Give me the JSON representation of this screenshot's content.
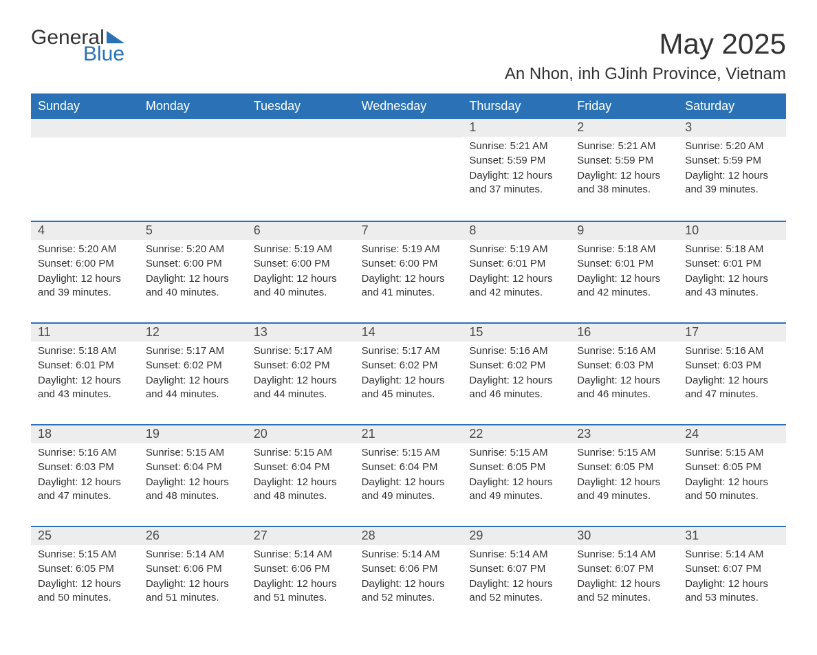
{
  "logo": {
    "text_top": "General",
    "text_bottom": "Blue"
  },
  "title": "May 2025",
  "location": "An Nhon, inh GJinh Province, Vietnam",
  "colors": {
    "header_bg": "#2a72b5",
    "header_text": "#ffffff",
    "row_border": "#2a72b5",
    "daynum_bg": "#ededed",
    "text": "#333333",
    "logo_accent": "#2a72b5"
  },
  "day_names": [
    "Sunday",
    "Monday",
    "Tuesday",
    "Wednesday",
    "Thursday",
    "Friday",
    "Saturday"
  ],
  "label_sunrise": "Sunrise:",
  "label_sunset": "Sunset:",
  "label_daylight": "Daylight:",
  "weeks": [
    [
      null,
      null,
      null,
      null,
      {
        "day": "1",
        "sunrise": "5:21 AM",
        "sunset": "5:59 PM",
        "daylight": "12 hours and 37 minutes."
      },
      {
        "day": "2",
        "sunrise": "5:21 AM",
        "sunset": "5:59 PM",
        "daylight": "12 hours and 38 minutes."
      },
      {
        "day": "3",
        "sunrise": "5:20 AM",
        "sunset": "5:59 PM",
        "daylight": "12 hours and 39 minutes."
      }
    ],
    [
      {
        "day": "4",
        "sunrise": "5:20 AM",
        "sunset": "6:00 PM",
        "daylight": "12 hours and 39 minutes."
      },
      {
        "day": "5",
        "sunrise": "5:20 AM",
        "sunset": "6:00 PM",
        "daylight": "12 hours and 40 minutes."
      },
      {
        "day": "6",
        "sunrise": "5:19 AM",
        "sunset": "6:00 PM",
        "daylight": "12 hours and 40 minutes."
      },
      {
        "day": "7",
        "sunrise": "5:19 AM",
        "sunset": "6:00 PM",
        "daylight": "12 hours and 41 minutes."
      },
      {
        "day": "8",
        "sunrise": "5:19 AM",
        "sunset": "6:01 PM",
        "daylight": "12 hours and 42 minutes."
      },
      {
        "day": "9",
        "sunrise": "5:18 AM",
        "sunset": "6:01 PM",
        "daylight": "12 hours and 42 minutes."
      },
      {
        "day": "10",
        "sunrise": "5:18 AM",
        "sunset": "6:01 PM",
        "daylight": "12 hours and 43 minutes."
      }
    ],
    [
      {
        "day": "11",
        "sunrise": "5:18 AM",
        "sunset": "6:01 PM",
        "daylight": "12 hours and 43 minutes."
      },
      {
        "day": "12",
        "sunrise": "5:17 AM",
        "sunset": "6:02 PM",
        "daylight": "12 hours and 44 minutes."
      },
      {
        "day": "13",
        "sunrise": "5:17 AM",
        "sunset": "6:02 PM",
        "daylight": "12 hours and 44 minutes."
      },
      {
        "day": "14",
        "sunrise": "5:17 AM",
        "sunset": "6:02 PM",
        "daylight": "12 hours and 45 minutes."
      },
      {
        "day": "15",
        "sunrise": "5:16 AM",
        "sunset": "6:02 PM",
        "daylight": "12 hours and 46 minutes."
      },
      {
        "day": "16",
        "sunrise": "5:16 AM",
        "sunset": "6:03 PM",
        "daylight": "12 hours and 46 minutes."
      },
      {
        "day": "17",
        "sunrise": "5:16 AM",
        "sunset": "6:03 PM",
        "daylight": "12 hours and 47 minutes."
      }
    ],
    [
      {
        "day": "18",
        "sunrise": "5:16 AM",
        "sunset": "6:03 PM",
        "daylight": "12 hours and 47 minutes."
      },
      {
        "day": "19",
        "sunrise": "5:15 AM",
        "sunset": "6:04 PM",
        "daylight": "12 hours and 48 minutes."
      },
      {
        "day": "20",
        "sunrise": "5:15 AM",
        "sunset": "6:04 PM",
        "daylight": "12 hours and 48 minutes."
      },
      {
        "day": "21",
        "sunrise": "5:15 AM",
        "sunset": "6:04 PM",
        "daylight": "12 hours and 49 minutes."
      },
      {
        "day": "22",
        "sunrise": "5:15 AM",
        "sunset": "6:05 PM",
        "daylight": "12 hours and 49 minutes."
      },
      {
        "day": "23",
        "sunrise": "5:15 AM",
        "sunset": "6:05 PM",
        "daylight": "12 hours and 49 minutes."
      },
      {
        "day": "24",
        "sunrise": "5:15 AM",
        "sunset": "6:05 PM",
        "daylight": "12 hours and 50 minutes."
      }
    ],
    [
      {
        "day": "25",
        "sunrise": "5:15 AM",
        "sunset": "6:05 PM",
        "daylight": "12 hours and 50 minutes."
      },
      {
        "day": "26",
        "sunrise": "5:14 AM",
        "sunset": "6:06 PM",
        "daylight": "12 hours and 51 minutes."
      },
      {
        "day": "27",
        "sunrise": "5:14 AM",
        "sunset": "6:06 PM",
        "daylight": "12 hours and 51 minutes."
      },
      {
        "day": "28",
        "sunrise": "5:14 AM",
        "sunset": "6:06 PM",
        "daylight": "12 hours and 52 minutes."
      },
      {
        "day": "29",
        "sunrise": "5:14 AM",
        "sunset": "6:07 PM",
        "daylight": "12 hours and 52 minutes."
      },
      {
        "day": "30",
        "sunrise": "5:14 AM",
        "sunset": "6:07 PM",
        "daylight": "12 hours and 52 minutes."
      },
      {
        "day": "31",
        "sunrise": "5:14 AM",
        "sunset": "6:07 PM",
        "daylight": "12 hours and 53 minutes."
      }
    ]
  ]
}
